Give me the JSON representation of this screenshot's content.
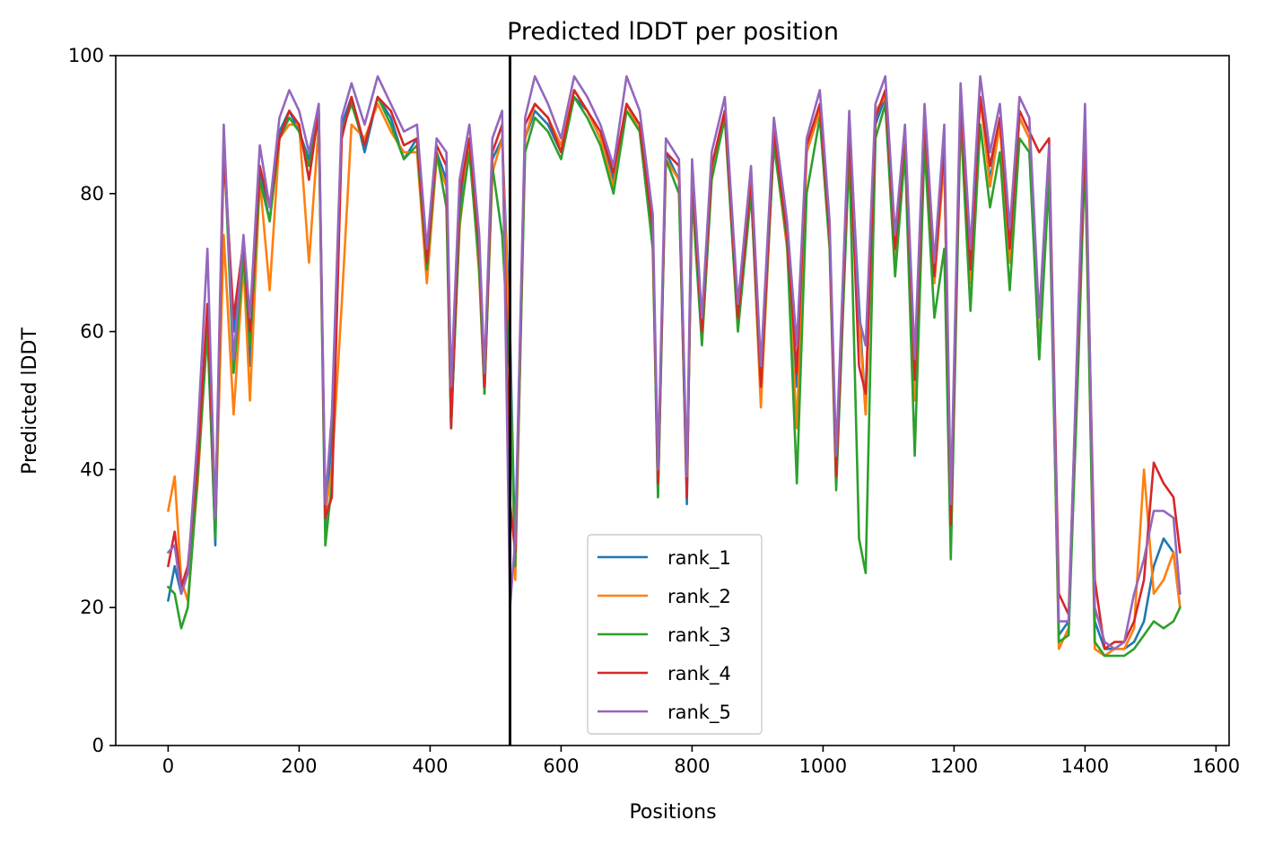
{
  "chart_data": {
    "type": "line",
    "title": "Predicted lDDT per position",
    "xlabel": "Positions",
    "ylabel": "Predicted lDDT",
    "xlim": [
      -80,
      1620
    ],
    "ylim": [
      0,
      100
    ],
    "xticks": [
      0,
      200,
      400,
      600,
      800,
      1000,
      1200,
      1400,
      1600
    ],
    "yticks": [
      0,
      20,
      40,
      60,
      80,
      100
    ],
    "grid": false,
    "legend_position": "lower-center",
    "vline_x": 522,
    "x": [
      0,
      10,
      20,
      30,
      45,
      60,
      72,
      85,
      100,
      115,
      125,
      140,
      155,
      170,
      185,
      200,
      215,
      230,
      240,
      250,
      265,
      280,
      300,
      320,
      340,
      360,
      380,
      395,
      410,
      425,
      432,
      445,
      460,
      475,
      483,
      495,
      510,
      522,
      530,
      545,
      560,
      580,
      600,
      620,
      640,
      660,
      680,
      700,
      720,
      740,
      748,
      760,
      780,
      792,
      800,
      815,
      830,
      850,
      870,
      890,
      905,
      925,
      945,
      960,
      975,
      995,
      1010,
      1020,
      1040,
      1055,
      1065,
      1080,
      1095,
      1110,
      1125,
      1140,
      1155,
      1170,
      1185,
      1195,
      1210,
      1225,
      1240,
      1255,
      1270,
      1285,
      1300,
      1315,
      1330,
      1345,
      1360,
      1375,
      1390,
      1400,
      1415,
      1430,
      1445,
      1460,
      1475,
      1490,
      1505,
      1520,
      1535,
      1545
    ],
    "series": [
      {
        "name": "rank_1",
        "color": "#1f77b4",
        "values": [
          21,
          26,
          22,
          25,
          40,
          62,
          29,
          88,
          60,
          72,
          55,
          83,
          76,
          89,
          92,
          89,
          85,
          92,
          32,
          45,
          90,
          94,
          86,
          94,
          91,
          85,
          88,
          70,
          86,
          82,
          46,
          78,
          88,
          72,
          51,
          85,
          88,
          60,
          27,
          88,
          92,
          90,
          86,
          94,
          92,
          88,
          82,
          93,
          90,
          75,
          36,
          86,
          82,
          35,
          82,
          60,
          84,
          92,
          62,
          82,
          50,
          88,
          74,
          52,
          86,
          92,
          74,
          40,
          90,
          64,
          48,
          90,
          94,
          72,
          88,
          52,
          90,
          68,
          86,
          31,
          94,
          68,
          94,
          82,
          90,
          72,
          91,
          88,
          56,
          84,
          16,
          18,
          60,
          88,
          18,
          14,
          14,
          14,
          15,
          18,
          26,
          30,
          28,
          20
        ]
      },
      {
        "name": "rank_2",
        "color": "#ff7f0e",
        "values": [
          34,
          39,
          24,
          21,
          38,
          61,
          31,
          74,
          48,
          70,
          50,
          82,
          66,
          88,
          90,
          90,
          70,
          90,
          34,
          40,
          64,
          90,
          88,
          93,
          89,
          86,
          86,
          67,
          85,
          81,
          48,
          75,
          88,
          68,
          51,
          83,
          88,
          56,
          24,
          88,
          93,
          91,
          87,
          95,
          92,
          88,
          81,
          93,
          89,
          73,
          38,
          85,
          82,
          37,
          81,
          59,
          83,
          92,
          61,
          81,
          49,
          88,
          72,
          46,
          86,
          92,
          73,
          39,
          89,
          62,
          48,
          92,
          94,
          70,
          88,
          50,
          89,
          67,
          85,
          32,
          93,
          67,
          94,
          81,
          90,
          70,
          91,
          88,
          58,
          84,
          14,
          17,
          58,
          86,
          14,
          13,
          14,
          14,
          17,
          40,
          22,
          24,
          28,
          20
        ]
      },
      {
        "name": "rank_3",
        "color": "#2ca02c",
        "values": [
          23,
          22,
          17,
          20,
          39,
          60,
          30,
          88,
          54,
          71,
          58,
          82,
          76,
          88,
          91,
          89,
          84,
          91,
          29,
          38,
          89,
          93,
          87,
          94,
          90,
          85,
          87,
          69,
          86,
          78,
          46,
          76,
          86,
          69,
          51,
          84,
          74,
          54,
          26,
          86,
          91,
          89,
          85,
          94,
          91,
          87,
          80,
          92,
          89,
          72,
          36,
          85,
          80,
          37,
          80,
          58,
          82,
          91,
          60,
          80,
          52,
          87,
          73,
          38,
          80,
          91,
          72,
          37,
          86,
          30,
          25,
          88,
          93,
          68,
          86,
          42,
          87,
          62,
          72,
          27,
          91,
          63,
          90,
          78,
          86,
          66,
          88,
          86,
          56,
          82,
          15,
          16,
          56,
          86,
          15,
          13,
          13,
          13,
          14,
          16,
          18,
          17,
          18,
          20
        ]
      },
      {
        "name": "rank_4",
        "color": "#d62728",
        "values": [
          26,
          31,
          23,
          26,
          41,
          64,
          33,
          86,
          62,
          73,
          60,
          84,
          78,
          88,
          92,
          90,
          82,
          92,
          33,
          36,
          88,
          94,
          87,
          94,
          92,
          87,
          88,
          70,
          87,
          84,
          46,
          80,
          88,
          72,
          52,
          86,
          90,
          35,
          28,
          90,
          93,
          91,
          86,
          95,
          92,
          89,
          83,
          93,
          90,
          75,
          38,
          86,
          84,
          36,
          83,
          60,
          84,
          92,
          62,
          82,
          52,
          89,
          74,
          54,
          87,
          93,
          74,
          39,
          90,
          55,
          51,
          91,
          95,
          72,
          89,
          53,
          91,
          68,
          87,
          32,
          94,
          69,
          94,
          84,
          91,
          72,
          92,
          89,
          86,
          88,
          22,
          19,
          62,
          89,
          24,
          14,
          15,
          15,
          18,
          24,
          41,
          38,
          36,
          28
        ]
      },
      {
        "name": "rank_5",
        "color": "#9467bd",
        "values": [
          28,
          29,
          22,
          25,
          45,
          72,
          33,
          90,
          56,
          74,
          62,
          87,
          78,
          91,
          95,
          92,
          86,
          93,
          35,
          48,
          91,
          96,
          90,
          97,
          93,
          89,
          90,
          72,
          88,
          86,
          52,
          82,
          90,
          74,
          54,
          88,
          92,
          20,
          30,
          91,
          97,
          93,
          88,
          97,
          94,
          90,
          84,
          97,
          92,
          77,
          40,
          88,
          85,
          39,
          85,
          62,
          86,
          94,
          64,
          84,
          55,
          91,
          76,
          58,
          88,
          95,
          76,
          42,
          92,
          62,
          58,
          93,
          97,
          74,
          90,
          56,
          93,
          70,
          90,
          35,
          96,
          72,
          97,
          86,
          93,
          75,
          94,
          91,
          62,
          87,
          18,
          18,
          64,
          93,
          20,
          15,
          14,
          15,
          22,
          27,
          34,
          34,
          33,
          22
        ]
      }
    ]
  }
}
